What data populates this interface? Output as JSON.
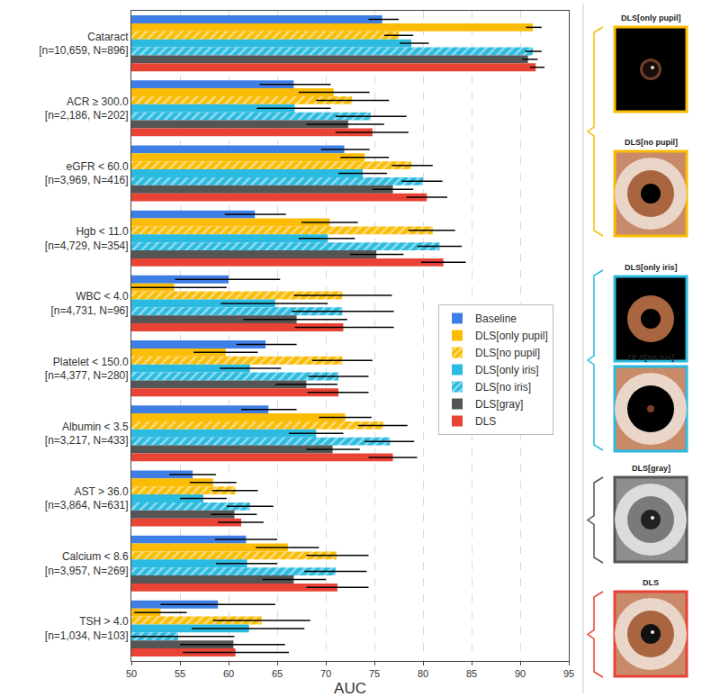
{
  "chart_data": {
    "type": "bar",
    "orientation": "horizontal",
    "xlabel": "AUC",
    "xlim": [
      50,
      95
    ],
    "xticks": [
      50,
      55,
      60,
      65,
      70,
      75,
      80,
      85,
      90,
      95
    ],
    "grid": true,
    "categories": [
      "Cataract\n[n=10,659, N=896]",
      "ACR ≥ 300.0\n[n=2,186, N=202]",
      "eGFR < 60.0\n[n=3,969, N=416]",
      "Hgb < 11.0\n[n=4,729, N=354]",
      "WBC < 4.0\n[n=4,731, N=96]",
      "Platelet < 150.0\n[n=4,377, N=280]",
      "Albumin < 3.5\n[n=3,217, N=433]",
      "AST > 36.0\n[n=3,864, N=631]",
      "Calcium < 8.6\n[n=3,957, N=269]",
      "TSH > 4.0\n[n=1,034, N=103]"
    ],
    "series": [
      {
        "name": "Baseline",
        "color": "#3f7fe5",
        "values": [
          75.8,
          66.7,
          71.9,
          62.7,
          60.0,
          63.8,
          64.1,
          56.3,
          61.8,
          58.9
        ],
        "ci_low": [
          74.4,
          63.2,
          69.5,
          59.6,
          54.5,
          60.8,
          61.3,
          53.9,
          58.6,
          53.0
        ],
        "ci_high": [
          77.5,
          70.5,
          74.5,
          65.9,
          65.3,
          67.0,
          67.0,
          58.7,
          65.0,
          64.8
        ]
      },
      {
        "name": "DLS[only pupil]",
        "color": "#fbbc05",
        "values": [
          91.3,
          70.8,
          74.0,
          70.4,
          54.4,
          59.7,
          72.0,
          58.4,
          66.1,
          53.0
        ],
        "ci_low": [
          90.6,
          67.2,
          71.5,
          67.5,
          49.2,
          56.4,
          69.3,
          56.0,
          62.8,
          50.3
        ],
        "ci_high": [
          92.2,
          74.5,
          76.5,
          73.3,
          59.8,
          63.0,
          74.7,
          60.8,
          69.3,
          55.7
        ]
      },
      {
        "name": "DLS[no pupil]",
        "color": "#fbbc05",
        "marker": "hatch",
        "values": [
          77.5,
          72.7,
          78.8,
          81.0,
          71.7,
          71.7,
          75.9,
          60.7,
          71.1,
          63.4
        ],
        "ci_low": [
          76.0,
          69.0,
          76.8,
          78.5,
          66.7,
          68.6,
          73.3,
          58.3,
          68.0,
          58.4
        ],
        "ci_high": [
          79.0,
          76.5,
          81.0,
          83.3,
          76.8,
          74.8,
          78.4,
          63.0,
          74.4,
          68.4
        ]
      },
      {
        "name": "DLS[only iris]",
        "color": "#2bbbe0",
        "values": [
          78.8,
          66.8,
          73.8,
          70.2,
          64.8,
          62.2,
          69.0,
          57.4,
          61.9,
          62.1
        ],
        "ci_low": [
          77.6,
          62.9,
          71.3,
          67.2,
          59.2,
          59.1,
          66.2,
          55.0,
          58.7,
          56.2
        ],
        "ci_high": [
          80.6,
          70.5,
          76.3,
          73.0,
          70.2,
          65.4,
          71.8,
          59.8,
          65.0,
          67.8
        ]
      },
      {
        "name": "DLS[no iris]",
        "color": "#2bbbe0",
        "marker": "hatch",
        "values": [
          91.3,
          74.6,
          80.0,
          81.7,
          71.7,
          71.3,
          76.6,
          62.2,
          71.0,
          54.8
        ],
        "ci_low": [
          90.5,
          71.0,
          77.8,
          79.4,
          66.5,
          68.2,
          74.0,
          59.8,
          67.8,
          48.8
        ],
        "ci_high": [
          92.2,
          78.3,
          82.0,
          84.0,
          77.0,
          74.4,
          79.1,
          64.6,
          74.2,
          60.6
        ]
      },
      {
        "name": "DLS[gray]",
        "color": "#555555",
        "values": [
          90.8,
          72.3,
          76.9,
          75.2,
          67.0,
          68.0,
          70.7,
          60.6,
          66.7,
          60.5
        ],
        "ci_low": [
          90.2,
          68.0,
          74.8,
          72.5,
          61.5,
          64.8,
          68.0,
          58.2,
          63.5,
          55.0
        ],
        "ci_high": [
          91.8,
          76.0,
          79.0,
          78.0,
          72.2,
          71.2,
          73.5,
          62.9,
          70.0,
          65.8
        ]
      },
      {
        "name": "DLS",
        "color": "#e84335",
        "values": [
          91.6,
          74.8,
          80.4,
          82.1,
          71.8,
          71.3,
          76.9,
          61.3,
          71.2,
          60.7
        ],
        "ci_low": [
          91.0,
          71.0,
          78.3,
          79.8,
          66.8,
          68.1,
          74.4,
          58.9,
          68.0,
          55.3
        ],
        "ci_high": [
          92.5,
          78.5,
          82.5,
          84.4,
          77.0,
          74.4,
          79.4,
          63.6,
          74.4,
          66.2
        ]
      }
    ],
    "annotations": [
      "DLS[only pupil]",
      "DLS[no pupil]",
      "DLS[only iris]",
      "DLS[no iris]",
      "DLS[gray]",
      "DLS"
    ]
  }
}
